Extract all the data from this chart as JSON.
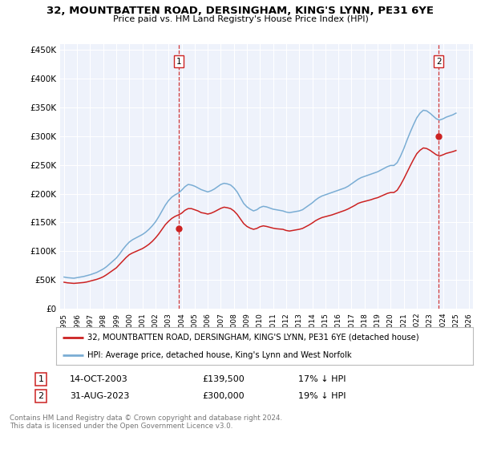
{
  "title_line1": "32, MOUNTBATTEN ROAD, DERSINGHAM, KING'S LYNN, PE31 6YE",
  "title_line2": "Price paid vs. HM Land Registry's House Price Index (HPI)",
  "ylim": [
    0,
    460000
  ],
  "yticks": [
    0,
    50000,
    100000,
    150000,
    200000,
    250000,
    300000,
    350000,
    400000,
    450000
  ],
  "ytick_labels": [
    "£0",
    "£50K",
    "£100K",
    "£150K",
    "£200K",
    "£250K",
    "£300K",
    "£350K",
    "£400K",
    "£450K"
  ],
  "background_color": "#ffffff",
  "plot_bg_color": "#eef2fb",
  "grid_color": "#ffffff",
  "hpi_color": "#7aadd4",
  "price_color": "#cc2222",
  "dashed_line_color": "#cc2222",
  "legend_label_price": "32, MOUNTBATTEN ROAD, DERSINGHAM, KING'S LYNN, PE31 6YE (detached house)",
  "legend_label_hpi": "HPI: Average price, detached house, King's Lynn and West Norfolk",
  "annotation1": {
    "num": "1",
    "date": "14-OCT-2003",
    "price": "£139,500",
    "pct": "17% ↓ HPI"
  },
  "annotation2": {
    "num": "2",
    "date": "31-AUG-2023",
    "price": "£300,000",
    "pct": "19% ↓ HPI"
  },
  "footer": "Contains HM Land Registry data © Crown copyright and database right 2024.\nThis data is licensed under the Open Government Licence v3.0.",
  "xstart_year": 1995,
  "xend_year": 2026,
  "sale1_year": 2003.79,
  "sale2_year": 2023.67,
  "sale1_price": 139500,
  "sale2_price": 300000,
  "hpi_years": [
    1995.0,
    1995.25,
    1995.5,
    1995.75,
    1996.0,
    1996.25,
    1996.5,
    1996.75,
    1997.0,
    1997.25,
    1997.5,
    1997.75,
    1998.0,
    1998.25,
    1998.5,
    1998.75,
    1999.0,
    1999.25,
    1999.5,
    1999.75,
    2000.0,
    2000.25,
    2000.5,
    2000.75,
    2001.0,
    2001.25,
    2001.5,
    2001.75,
    2002.0,
    2002.25,
    2002.5,
    2002.75,
    2003.0,
    2003.25,
    2003.5,
    2003.75,
    2004.0,
    2004.25,
    2004.5,
    2004.75,
    2005.0,
    2005.25,
    2005.5,
    2005.75,
    2006.0,
    2006.25,
    2006.5,
    2006.75,
    2007.0,
    2007.25,
    2007.5,
    2007.75,
    2008.0,
    2008.25,
    2008.5,
    2008.75,
    2009.0,
    2009.25,
    2009.5,
    2009.75,
    2010.0,
    2010.25,
    2010.5,
    2010.75,
    2011.0,
    2011.25,
    2011.5,
    2011.75,
    2012.0,
    2012.25,
    2012.5,
    2012.75,
    2013.0,
    2013.25,
    2013.5,
    2013.75,
    2014.0,
    2014.25,
    2014.5,
    2014.75,
    2015.0,
    2015.25,
    2015.5,
    2015.75,
    2016.0,
    2016.25,
    2016.5,
    2016.75,
    2017.0,
    2017.25,
    2017.5,
    2017.75,
    2018.0,
    2018.25,
    2018.5,
    2018.75,
    2019.0,
    2019.25,
    2019.5,
    2019.75,
    2020.0,
    2020.25,
    2020.5,
    2020.75,
    2021.0,
    2021.25,
    2021.5,
    2021.75,
    2022.0,
    2022.25,
    2022.5,
    2022.75,
    2023.0,
    2023.25,
    2023.5,
    2023.75,
    2024.0,
    2024.25,
    2024.5,
    2024.75,
    2025.0
  ],
  "hpi_values": [
    55000,
    54000,
    53500,
    53000,
    54000,
    55000,
    56000,
    57500,
    59000,
    61000,
    63000,
    66000,
    69000,
    73000,
    78000,
    83000,
    88000,
    95000,
    103000,
    110000,
    116000,
    120000,
    123000,
    126000,
    129000,
    133000,
    138000,
    144000,
    151000,
    160000,
    170000,
    180000,
    188000,
    194000,
    198000,
    201000,
    206000,
    212000,
    216000,
    215000,
    213000,
    210000,
    207000,
    205000,
    203000,
    205000,
    208000,
    212000,
    216000,
    218000,
    217000,
    215000,
    210000,
    203000,
    193000,
    183000,
    177000,
    173000,
    170000,
    172000,
    176000,
    178000,
    177000,
    175000,
    173000,
    172000,
    171000,
    170000,
    168000,
    167000,
    168000,
    169000,
    170000,
    172000,
    176000,
    180000,
    184000,
    189000,
    193000,
    196000,
    198000,
    200000,
    202000,
    204000,
    206000,
    208000,
    210000,
    213000,
    217000,
    221000,
    225000,
    228000,
    230000,
    232000,
    234000,
    236000,
    238000,
    241000,
    244000,
    247000,
    249000,
    249000,
    254000,
    265000,
    278000,
    293000,
    307000,
    320000,
    332000,
    340000,
    345000,
    344000,
    340000,
    335000,
    330000,
    328000,
    330000,
    333000,
    335000,
    337000,
    340000
  ],
  "price_values": [
    46000,
    45000,
    44500,
    44000,
    44500,
    45000,
    45500,
    46500,
    48000,
    49500,
    51000,
    53000,
    55500,
    59000,
    63000,
    67000,
    71000,
    77000,
    83000,
    89000,
    94000,
    97000,
    99500,
    102000,
    104500,
    108000,
    112000,
    117000,
    123000,
    130000,
    138000,
    146000,
    152000,
    157000,
    160500,
    163000,
    166000,
    171000,
    174000,
    174000,
    172000,
    170000,
    167000,
    166000,
    164500,
    166000,
    168500,
    171500,
    174500,
    176500,
    175500,
    174000,
    170000,
    164000,
    156000,
    148000,
    143000,
    140000,
    138000,
    139500,
    142500,
    144000,
    143000,
    141500,
    140000,
    139000,
    138500,
    138000,
    136000,
    135000,
    136000,
    137000,
    138000,
    139500,
    142500,
    145500,
    149000,
    153000,
    156000,
    158500,
    160000,
    161500,
    163000,
    165000,
    167000,
    169000,
    171000,
    173500,
    176500,
    179500,
    183000,
    185000,
    186500,
    188000,
    189500,
    191500,
    193000,
    195500,
    198000,
    200500,
    202000,
    202000,
    206000,
    215000,
    225500,
    237000,
    248500,
    259500,
    269500,
    275500,
    279500,
    278500,
    275500,
    271500,
    267500,
    265500,
    267500,
    270000,
    271500,
    273000,
    275000
  ]
}
